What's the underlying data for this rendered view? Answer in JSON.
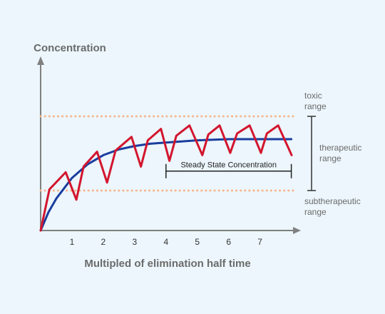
{
  "chart_data": {
    "type": "line",
    "title": "Concentration",
    "x_label": "Multipled of elimination half time",
    "xlim": [
      0,
      8.1
    ],
    "ylim": [
      0,
      150
    ],
    "xticks": [
      1,
      2,
      3,
      4,
      5,
      6,
      7
    ],
    "series": [
      {
        "color": "#1b3d9e",
        "x": [
          0,
          0.25,
          0.5,
          1,
          1.5,
          2,
          2.5,
          3,
          3.5,
          4,
          5,
          6,
          7,
          8
        ],
        "values": [
          0,
          16,
          28,
          46,
          58,
          66,
          71,
          74,
          76,
          77,
          79,
          80,
          80,
          80
        ]
      },
      {
        "color": "#d3152e",
        "x": [
          0,
          0.28,
          0.8,
          1.14,
          1.37,
          1.8,
          2.12,
          2.39,
          2.9,
          3.2,
          3.42,
          3.84,
          4.11,
          4.33,
          4.75,
          5.16,
          5.35,
          5.71,
          6.05,
          6.27,
          6.67,
          7.03,
          7.22,
          7.58,
          8.01
        ],
        "values": [
          0,
          36,
          51,
          27,
          56,
          69,
          42,
          70,
          82,
          56,
          79,
          89,
          61,
          83,
          92,
          66,
          84,
          92,
          68,
          85,
          92,
          68,
          85,
          92,
          66
        ]
      }
    ],
    "reference_lines": [
      {
        "value": 100,
        "color": "#f7b58c",
        "label": [
          "toxic",
          "range"
        ]
      },
      {
        "value": 35,
        "color": "#f7b58c",
        "label": [
          "subtherapeutic",
          "range"
        ]
      }
    ],
    "range_label": [
      "therapeutic",
      "range"
    ],
    "steady_state": {
      "label": "Steady State Concentration",
      "x": [
        4,
        8
      ],
      "y": 52
    }
  }
}
